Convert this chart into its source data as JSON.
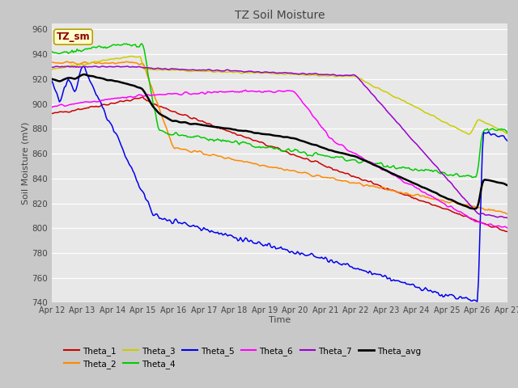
{
  "title": "TZ Soil Moisture",
  "xlabel": "Time",
  "ylabel": "Soil Moisture (mV)",
  "ylim": [
    740,
    965
  ],
  "xlim": [
    0,
    360
  ],
  "x_tick_labels": [
    "Apr 12",
    "Apr 13",
    "Apr 14",
    "Apr 15",
    "Apr 16",
    "Apr 17",
    "Apr 18",
    "Apr 19",
    "Apr 20",
    "Apr 21",
    "Apr 22",
    "Apr 23",
    "Apr 24",
    "Apr 25",
    "Apr 26",
    "Apr 27"
  ],
  "x_tick_positions": [
    0,
    24,
    48,
    72,
    96,
    120,
    144,
    168,
    192,
    216,
    240,
    264,
    288,
    312,
    336,
    360
  ],
  "y_tick_values": [
    740,
    760,
    780,
    800,
    820,
    840,
    860,
    880,
    900,
    920,
    940,
    960
  ],
  "colors": {
    "Theta_1": "#cc0000",
    "Theta_2": "#ff8800",
    "Theta_3": "#cccc00",
    "Theta_4": "#00cc00",
    "Theta_5": "#0000ee",
    "Theta_6": "#ff00ff",
    "Theta_7": "#9900cc",
    "Theta_avg": "#000000"
  },
  "label_box": "TZ_sm",
  "fig_bg": "#c8c8c8",
  "plot_bg": "#e8e8e8"
}
